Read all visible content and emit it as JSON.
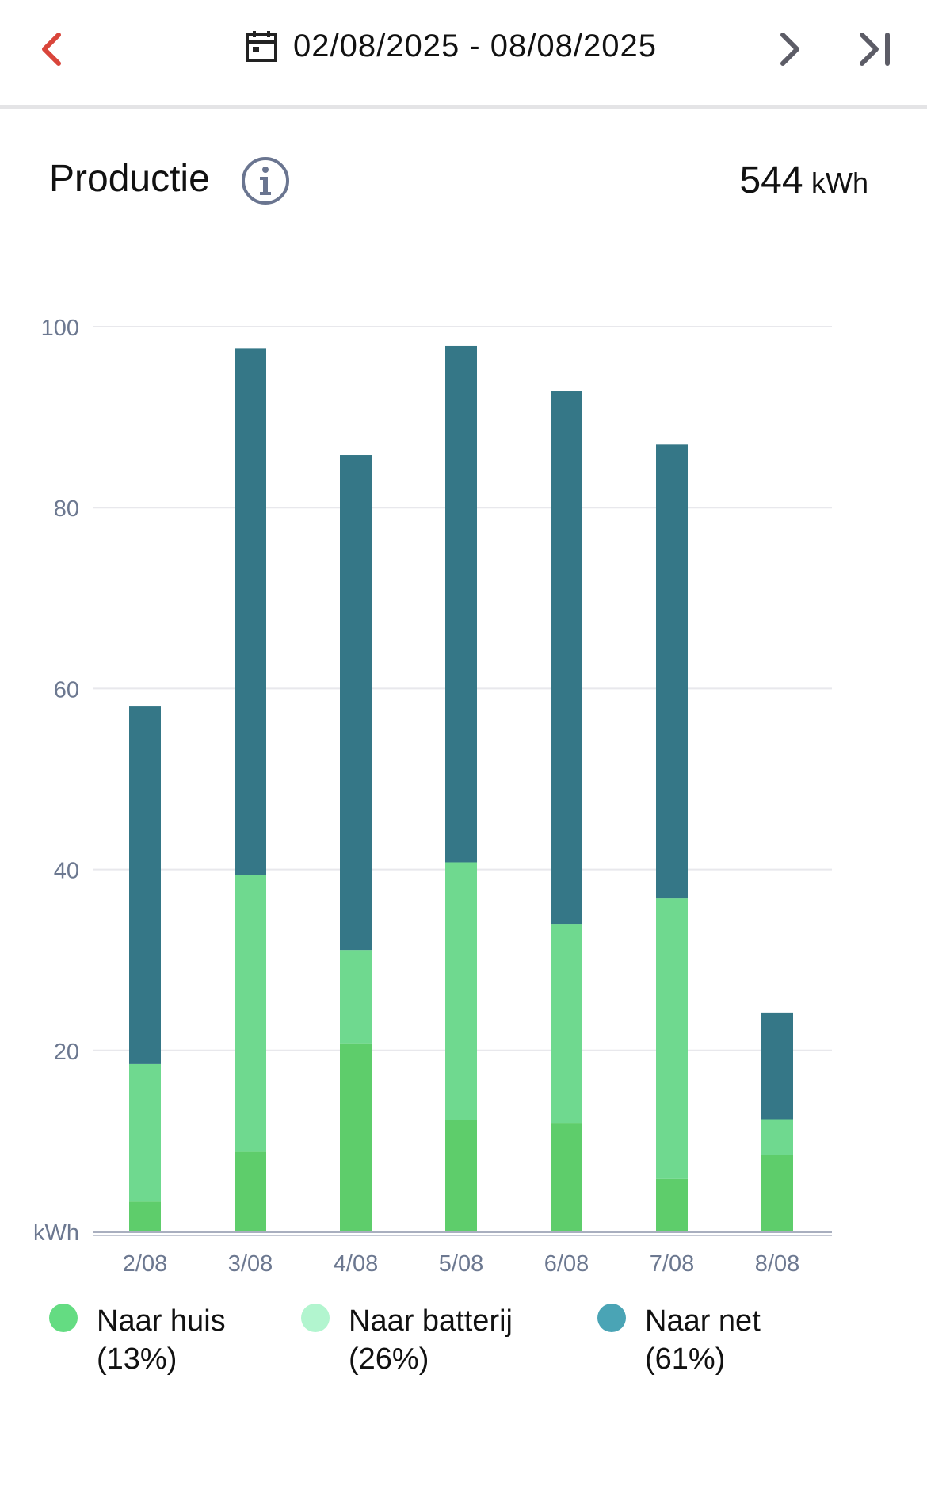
{
  "header": {
    "date_range": "02/08/2025 - 08/08/2025",
    "back_icon": "chevron-left-icon",
    "calendar_icon": "calendar-icon",
    "next_icon": "chevron-right-icon",
    "last_icon": "skip-to-end-icon",
    "back_color": "#d9453b"
  },
  "production": {
    "title": "Productie",
    "info_icon": "info-circle-icon",
    "total_value": "544",
    "total_unit": "kWh"
  },
  "legend": [
    {
      "label": "Naar huis",
      "pct": "(13%)",
      "color": "#64dc82"
    },
    {
      "label": "Naar batterij",
      "pct": "(26%)",
      "color": "#b2f5cf"
    },
    {
      "label": "Naar net",
      "pct": "(61%)",
      "color": "#4aa4b5"
    }
  ],
  "chart_data": {
    "type": "bar",
    "stacked": true,
    "categories": [
      "2/08",
      "3/08",
      "4/08",
      "5/08",
      "6/08",
      "7/08",
      "8/08"
    ],
    "series": [
      {
        "name": "Naar huis",
        "color": "#5ecd6b",
        "values": [
          3.3,
          8.8,
          20.8,
          12.3,
          12.0,
          5.8,
          8.5
        ]
      },
      {
        "name": "Naar batterij",
        "color": "#6fd98f",
        "values": [
          15.2,
          30.6,
          10.3,
          28.5,
          22.0,
          31.0,
          3.9
        ]
      },
      {
        "name": "Naar net",
        "color": "#357787",
        "values": [
          39.6,
          58.2,
          54.7,
          57.1,
          58.9,
          50.2,
          11.8
        ]
      }
    ],
    "y_ticks": [
      "100",
      "80",
      "60",
      "40",
      "20",
      "kWh"
    ],
    "ylim": [
      0,
      100
    ],
    "grid": true,
    "legend_position": "bottom"
  }
}
